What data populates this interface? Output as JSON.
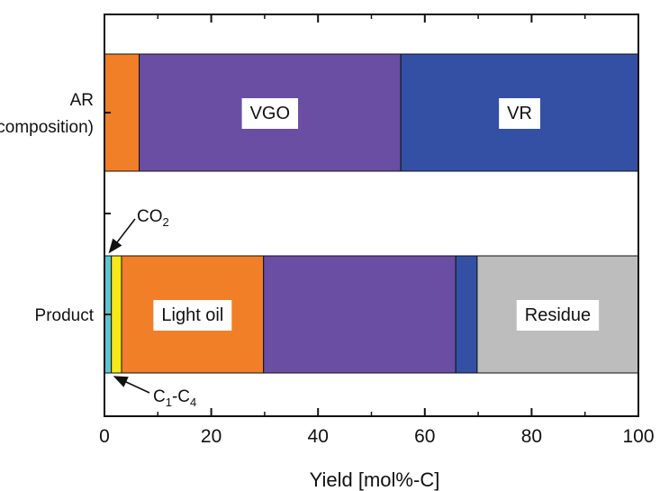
{
  "chart_data": {
    "type": "bar",
    "orientation": "horizontal",
    "stacked": true,
    "xlabel": "Yield [mol%-C]",
    "ylabel": "",
    "xlim": [
      0,
      100
    ],
    "x_ticks": [
      "0",
      "20",
      "40",
      "60",
      "80",
      "100"
    ],
    "grid": false,
    "legend": "none",
    "categories": [
      {
        "label_lines": [
          "AR",
          "(composition)"
        ],
        "segments": [
          {
            "start": 0,
            "end": 6.5,
            "label": "",
            "color": "#f07f28"
          },
          {
            "start": 6.5,
            "end": 55.5,
            "label": "VGO",
            "color": "#6a4ea3"
          },
          {
            "start": 55.5,
            "end": 100,
            "label": "VR",
            "color": "#3350a4"
          }
        ]
      },
      {
        "label_lines": [
          "Product"
        ],
        "segments": [
          {
            "start": 0,
            "end": 1.3,
            "label": "",
            "color": "#5ec6d3"
          },
          {
            "start": 1.3,
            "end": 3.2,
            "label": "",
            "color": "#f7e81c"
          },
          {
            "start": 3.2,
            "end": 29.8,
            "label": "Light oil",
            "color": "#f07f28"
          },
          {
            "start": 29.8,
            "end": 65.8,
            "label": "",
            "color": "#6a4ea3"
          },
          {
            "start": 65.8,
            "end": 69.8,
            "label": "",
            "color": "#3350a4"
          },
          {
            "start": 69.8,
            "end": 100,
            "label": "Residue",
            "color": "#bdbdbd"
          }
        ]
      }
    ],
    "annotations": [
      {
        "base": "CO",
        "sub": "2",
        "rest": "",
        "sub2": "",
        "target_category": 1,
        "target_x": 0.6,
        "side": "top"
      },
      {
        "base": "C",
        "sub": "1",
        "rest": "-C",
        "sub2": "4",
        "target_category": 1,
        "target_x": 1.2,
        "side": "bottom"
      }
    ],
    "colors": {
      "axis": "#111111",
      "label_box": "#ffffff"
    }
  }
}
